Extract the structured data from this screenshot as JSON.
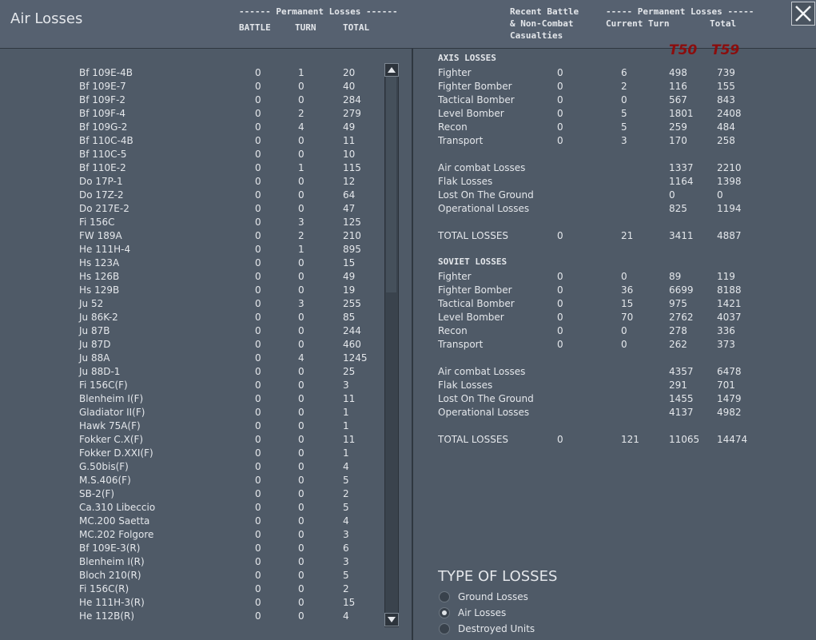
{
  "header": {
    "title": "Air Losses",
    "left_group": "------ Permanent Losses ------",
    "left_columns": [
      "BATTLE",
      "TURN",
      "TOTAL"
    ],
    "right_recent": [
      "Recent Battle",
      "& Non-Combat",
      "Casualties"
    ],
    "right_group": "----- Permanent Losses -----",
    "right_current": "Current Turn",
    "right_total": "Total",
    "turn_labels": [
      "T50",
      "T59"
    ]
  },
  "left_table": {
    "rows": [
      [
        "Bf 109E-4B",
        0,
        1,
        20
      ],
      [
        "Bf 109E-7",
        0,
        0,
        40
      ],
      [
        "Bf 109F-2",
        0,
        0,
        284
      ],
      [
        "Bf 109F-4",
        0,
        2,
        279
      ],
      [
        "Bf 109G-2",
        0,
        4,
        49
      ],
      [
        "Bf 110C-4B",
        0,
        0,
        11
      ],
      [
        "Bf 110C-5",
        0,
        0,
        10
      ],
      [
        "Bf 110E-2",
        0,
        1,
        115
      ],
      [
        "Do 17P-1",
        0,
        0,
        12
      ],
      [
        "Do 17Z-2",
        0,
        0,
        64
      ],
      [
        "Do 217E-2",
        0,
        0,
        47
      ],
      [
        "Fi 156C",
        0,
        3,
        125
      ],
      [
        "FW 189A",
        0,
        2,
        210
      ],
      [
        "He 111H-4",
        0,
        1,
        895
      ],
      [
        "Hs 123A",
        0,
        0,
        15
      ],
      [
        "Hs 126B",
        0,
        0,
        49
      ],
      [
        "Hs 129B",
        0,
        0,
        19
      ],
      [
        "Ju 52",
        0,
        3,
        255
      ],
      [
        "Ju 86K-2",
        0,
        0,
        85
      ],
      [
        "Ju 87B",
        0,
        0,
        244
      ],
      [
        "Ju 87D",
        0,
        0,
        460
      ],
      [
        "Ju 88A",
        0,
        4,
        1245
      ],
      [
        "Ju 88D-1",
        0,
        0,
        25
      ],
      [
        "Fi 156C(F)",
        0,
        0,
        3
      ],
      [
        "Blenheim I(F)",
        0,
        0,
        11
      ],
      [
        "Gladiator II(F)",
        0,
        0,
        1
      ],
      [
        "Hawk 75A(F)",
        0,
        0,
        1
      ],
      [
        "Fokker C.X(F)",
        0,
        0,
        11
      ],
      [
        "Fokker D.XXI(F)",
        0,
        0,
        1
      ],
      [
        "G.50bis(F)",
        0,
        0,
        4
      ],
      [
        "M.S.406(F)",
        0,
        0,
        5
      ],
      [
        "SB-2(F)",
        0,
        0,
        2
      ],
      [
        "Ca.310 Libeccio",
        0,
        0,
        5
      ],
      [
        "MC.200 Saetta",
        0,
        0,
        4
      ],
      [
        "MC.202 Folgore",
        0,
        0,
        3
      ],
      [
        "Bf 109E-3(R)",
        0,
        0,
        6
      ],
      [
        "Blenheim I(R)",
        0,
        0,
        3
      ],
      [
        "Bloch 210(R)",
        0,
        0,
        5
      ],
      [
        "Fi 156C(R)",
        0,
        0,
        2
      ],
      [
        "He 111H-3(R)",
        0,
        0,
        15
      ],
      [
        "He 112B(R)",
        0,
        0,
        4
      ]
    ]
  },
  "axis": {
    "title": "AXIS LOSSES",
    "rows": [
      [
        "Fighter",
        0,
        6,
        498,
        739
      ],
      [
        "Fighter Bomber",
        0,
        2,
        116,
        155
      ],
      [
        "Tactical Bomber",
        0,
        0,
        567,
        843
      ],
      [
        "Level Bomber",
        0,
        5,
        1801,
        2408
      ],
      [
        "Recon",
        0,
        5,
        259,
        484
      ],
      [
        "Transport",
        0,
        3,
        170,
        258
      ]
    ],
    "summary": [
      [
        "Air combat Losses",
        1337,
        2210
      ],
      [
        "Flak Losses",
        1164,
        1398
      ],
      [
        "Lost On The Ground",
        0,
        0
      ],
      [
        "Operational Losses",
        825,
        1194
      ]
    ],
    "total": [
      "TOTAL LOSSES",
      0,
      21,
      3411,
      4887
    ]
  },
  "soviet": {
    "title": "SOVIET LOSSES",
    "rows": [
      [
        "Fighter",
        0,
        0,
        89,
        119
      ],
      [
        "Fighter Bomber",
        0,
        36,
        6699,
        8188
      ],
      [
        "Tactical Bomber",
        0,
        15,
        975,
        1421
      ],
      [
        "Level Bomber",
        0,
        70,
        2762,
        4037
      ],
      [
        "Recon",
        0,
        0,
        278,
        336
      ],
      [
        "Transport",
        0,
        0,
        262,
        373
      ]
    ],
    "summary": [
      [
        "Air combat Losses",
        4357,
        6478
      ],
      [
        "Flak Losses",
        291,
        701
      ],
      [
        "Lost On The Ground",
        1455,
        1479
      ],
      [
        "Operational Losses",
        4137,
        4982
      ]
    ],
    "total": [
      "TOTAL LOSSES",
      0,
      121,
      11065,
      14474
    ]
  },
  "type_of_losses": {
    "title": "TYPE OF LOSSES",
    "options": [
      "Ground Losses",
      "Air Losses",
      "Destroyed Units"
    ],
    "selected": 1
  }
}
